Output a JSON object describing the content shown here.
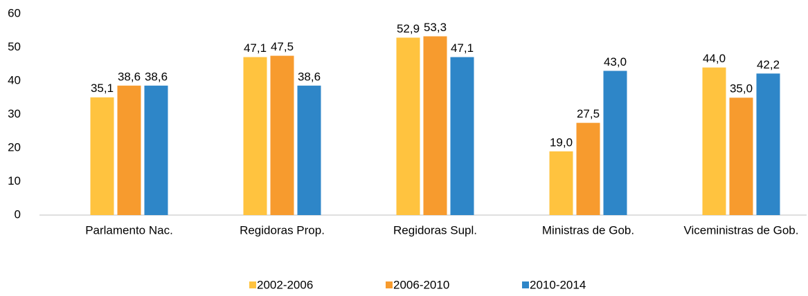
{
  "chart_data": {
    "type": "bar",
    "categories": [
      "Parlamento Nac.",
      "Regidoras Prop.",
      "Regidoras Supl.",
      "Ministras de Gob.",
      "Viceministras de Gob."
    ],
    "series": [
      {
        "name": "2002-2006",
        "color": "#FFC33F",
        "values": [
          35.1,
          47.1,
          52.9,
          19.0,
          44.0
        ],
        "value_labels": [
          "35,1",
          "47,1",
          "52,9",
          "19,0",
          "44,0"
        ]
      },
      {
        "name": "2006-2010",
        "color": "#F79B2E",
        "values": [
          38.6,
          47.5,
          53.3,
          27.5,
          35.0
        ],
        "value_labels": [
          "38,6",
          "47,5",
          "53,3",
          "27,5",
          "35,0"
        ]
      },
      {
        "name": "2010-2014",
        "color": "#2E86C8",
        "values": [
          38.6,
          38.6,
          47.1,
          43.0,
          42.2
        ],
        "value_labels": [
          "38,6",
          "38,6",
          "47,1",
          "43,0",
          "42,2"
        ]
      }
    ],
    "ylim": [
      0,
      60
    ],
    "yticks": [
      0,
      10,
      20,
      30,
      40,
      50,
      60
    ],
    "grid": false,
    "legend": "bottom"
  }
}
